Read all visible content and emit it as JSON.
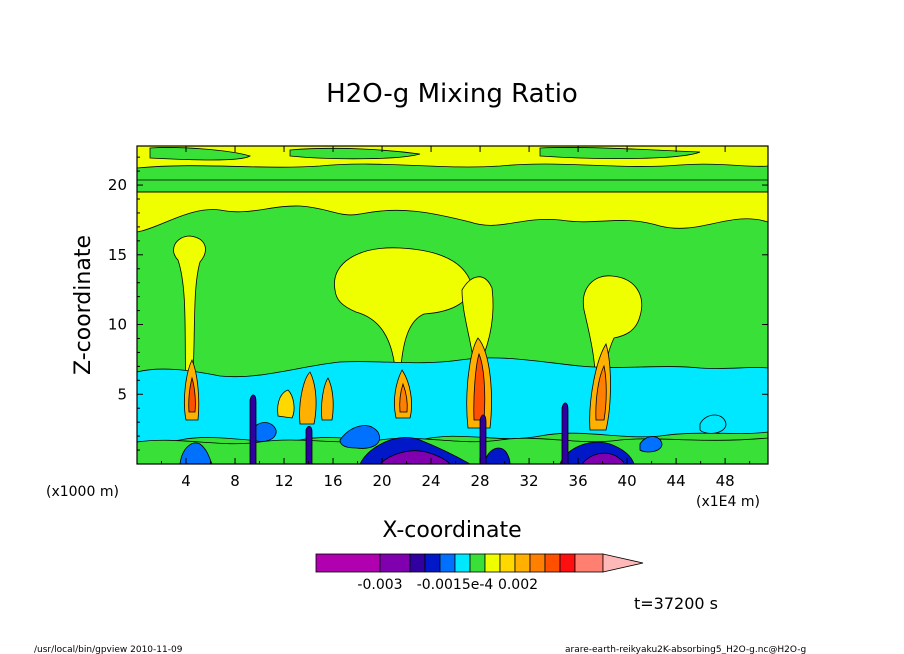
{
  "chart_data": {
    "type": "heatmap",
    "title": "H2O-g Mixing Ratio",
    "xlabel": "X-coordinate",
    "ylabel": "Z-coordinate",
    "x_unit_left": "(x1000 m)",
    "x_unit_right": "(x1E4 m)",
    "xlim": [
      0,
      51.5
    ],
    "ylim": [
      0,
      22.8
    ],
    "x_ticks": [
      4,
      8,
      12,
      16,
      20,
      24,
      28,
      32,
      36,
      40,
      44,
      48
    ],
    "y_ticks": [
      5,
      10,
      15,
      20
    ],
    "colorbar": {
      "colors": [
        "#b000b0",
        "#8000b0",
        "#3000a0",
        "#0018c8",
        "#0070ff",
        "#00e8ff",
        "#38e038",
        "#f0ff00",
        "#ffd800",
        "#ffb000",
        "#ff8000",
        "#ff5000",
        "#ff1010",
        "#ff8070",
        "#ffb8b8"
      ],
      "tick_labels": [
        "-0.003",
        "-0.0015e-4",
        "0.002"
      ]
    },
    "time_label": "t=37200 s",
    "footer_left": "/usr/local/bin/gpview  2010-11-09",
    "footer_right": "arare-earth-reikyaku2K-absorbing5_H2O-g.nc@H2O-g"
  }
}
